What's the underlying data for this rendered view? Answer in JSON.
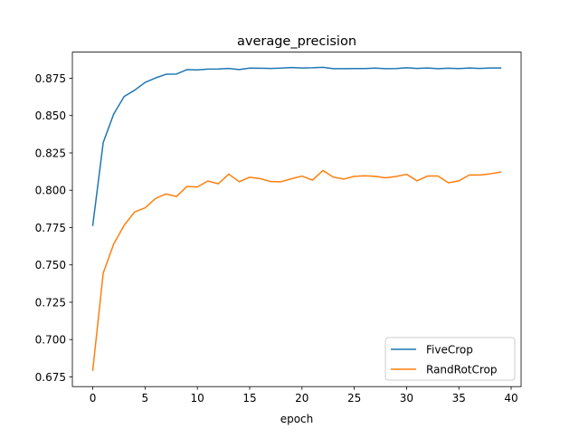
{
  "chart_data": {
    "type": "line",
    "title": "average_precision",
    "xlabel": "epoch",
    "ylabel": "",
    "xlim": [
      -1.95,
      40.95
    ],
    "ylim": [
      0.6685,
      0.8925
    ],
    "xticks": [
      0,
      5,
      10,
      15,
      20,
      25,
      30,
      35,
      40
    ],
    "xtick_labels": [
      "0",
      "5",
      "10",
      "15",
      "20",
      "25",
      "30",
      "35",
      "40"
    ],
    "yticks": [
      0.675,
      0.7,
      0.725,
      0.75,
      0.775,
      0.8,
      0.825,
      0.85,
      0.875
    ],
    "ytick_labels": [
      "0.675",
      "0.700",
      "0.725",
      "0.750",
      "0.775",
      "0.800",
      "0.825",
      "0.850",
      "0.875"
    ],
    "grid": false,
    "legend_position": "lower-right",
    "x": [
      0,
      1,
      2,
      3,
      4,
      5,
      6,
      7,
      8,
      9,
      10,
      11,
      12,
      13,
      14,
      15,
      16,
      17,
      18,
      19,
      20,
      21,
      22,
      23,
      24,
      25,
      26,
      27,
      28,
      29,
      30,
      31,
      32,
      33,
      34,
      35,
      36,
      37,
      38,
      39
    ],
    "series": [
      {
        "name": "FiveCrop",
        "color": "#1f77b4",
        "values": [
          0.7765,
          0.832,
          0.851,
          0.8628,
          0.867,
          0.8722,
          0.8752,
          0.8777,
          0.8778,
          0.8808,
          0.8806,
          0.8811,
          0.8812,
          0.8816,
          0.8808,
          0.8818,
          0.8817,
          0.8816,
          0.8818,
          0.8822,
          0.8819,
          0.882,
          0.8823,
          0.8814,
          0.8814,
          0.8815,
          0.8815,
          0.8818,
          0.8814,
          0.8815,
          0.882,
          0.8816,
          0.8819,
          0.8814,
          0.8817,
          0.8815,
          0.8819,
          0.8816,
          0.8819,
          0.8819
        ]
      },
      {
        "name": "RandRotCrop",
        "color": "#ff7f0e",
        "values": [
          0.6795,
          0.7445,
          0.764,
          0.7765,
          0.7855,
          0.7882,
          0.7945,
          0.7975,
          0.7958,
          0.8025,
          0.8022,
          0.8062,
          0.8043,
          0.8108,
          0.8057,
          0.8087,
          0.8078,
          0.8058,
          0.8057,
          0.8077,
          0.8095,
          0.8068,
          0.8132,
          0.8088,
          0.8075,
          0.8093,
          0.8097,
          0.8093,
          0.8083,
          0.8092,
          0.8107,
          0.8063,
          0.8095,
          0.8095,
          0.805,
          0.8063,
          0.8102,
          0.8102,
          0.811,
          0.8122
        ]
      }
    ]
  }
}
